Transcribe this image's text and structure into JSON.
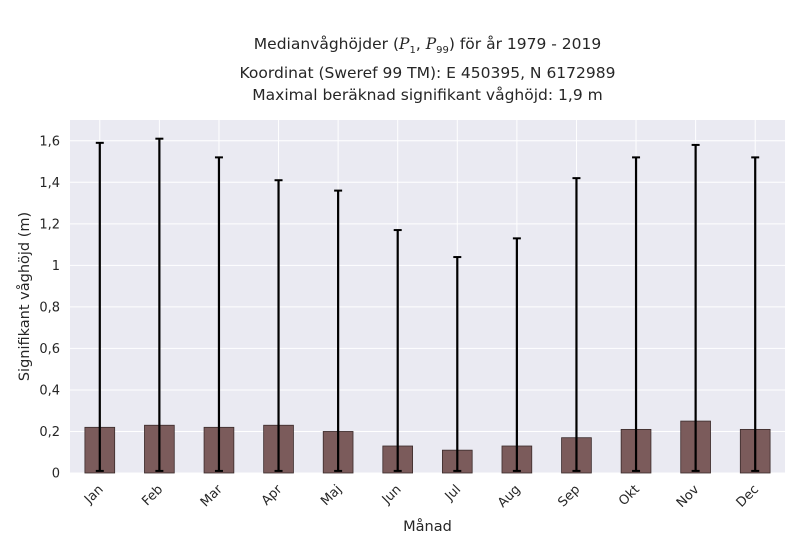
{
  "title": {
    "line1_prefix": "Medianvåghöjder (",
    "p1": "P",
    "p1_sub": "1",
    "sep": ", ",
    "p99": "P",
    "p99_sub": "99",
    "line1_suffix": ") för år 1979 - 2019",
    "line2": "Koordinat (Sweref 99 TM): E 450395, N 6172989",
    "line3": "Maximal beräknad signifikant våghöjd: 1,9 m"
  },
  "chart_data": {
    "type": "bar",
    "xlabel": "Månad",
    "ylabel": "Signifikant våghöjd (m)",
    "ylim": [
      0,
      1.7
    ],
    "yticks": [
      0,
      0.2,
      0.4,
      0.6,
      0.8,
      1,
      1.2,
      1.4,
      1.6
    ],
    "ytick_labels": [
      "0",
      "0,2",
      "0,4",
      "0,6",
      "0,8",
      "1",
      "1,2",
      "1,4",
      "1,6"
    ],
    "categories": [
      "Jan",
      "Feb",
      "Mar",
      "Apr",
      "Maj",
      "Jun",
      "Jul",
      "Aug",
      "Sep",
      "Okt",
      "Nov",
      "Dec"
    ],
    "values": [
      0.22,
      0.23,
      0.22,
      0.23,
      0.2,
      0.13,
      0.11,
      0.13,
      0.17,
      0.21,
      0.25,
      0.21
    ],
    "error_low": [
      0.01,
      0.01,
      0.01,
      0.01,
      0.01,
      0.01,
      0.01,
      0.01,
      0.01,
      0.01,
      0.01,
      0.01
    ],
    "error_high": [
      1.59,
      1.61,
      1.52,
      1.41,
      1.36,
      1.17,
      1.04,
      1.13,
      1.42,
      1.52,
      1.58,
      1.52
    ],
    "grid": true,
    "colors": {
      "bar": "#7b5b5b",
      "bar_edge": "#3a2a2a",
      "error": "#000000",
      "background": "#eaeaf2",
      "grid": "#ffffff"
    }
  }
}
